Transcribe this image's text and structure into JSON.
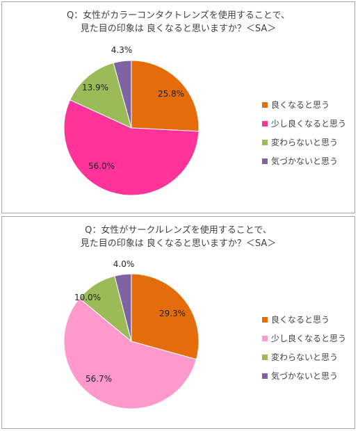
{
  "chart_data": [
    {
      "type": "pie",
      "title": [
        "Q：女性がカラーコンタクトレンズを使用することで、",
        "見た目の印象は 良くなると思いますか？＜SA＞"
      ],
      "categories": [
        "良くなると思う",
        "少し良くなると思う",
        "変わらないと思う",
        "気づかないと思う"
      ],
      "values": [
        25.8,
        56.0,
        13.9,
        4.3
      ],
      "labels": [
        "25.8%",
        "56.0%",
        "13.9%",
        "4.3%"
      ],
      "colors": [
        "#e46c0a",
        "#ff3399",
        "#9bbb59",
        "#8064a2"
      ],
      "legend_position": "right"
    },
    {
      "type": "pie",
      "title": [
        "Q：女性がサークルレンズを使用することで、",
        "見た目の印象は 良くなると思いますか？＜SA＞"
      ],
      "categories": [
        "良くなると思う",
        "少し良くなると思う",
        "変わらないと思う",
        "気づかないと思う"
      ],
      "values": [
        29.3,
        56.7,
        10.0,
        4.0
      ],
      "labels": [
        "29.3%",
        "56.7%",
        "10.0%",
        "4.0%"
      ],
      "colors": [
        "#e46c0a",
        "#ff99cc",
        "#9bbb59",
        "#8064a2"
      ],
      "legend_position": "right"
    }
  ]
}
